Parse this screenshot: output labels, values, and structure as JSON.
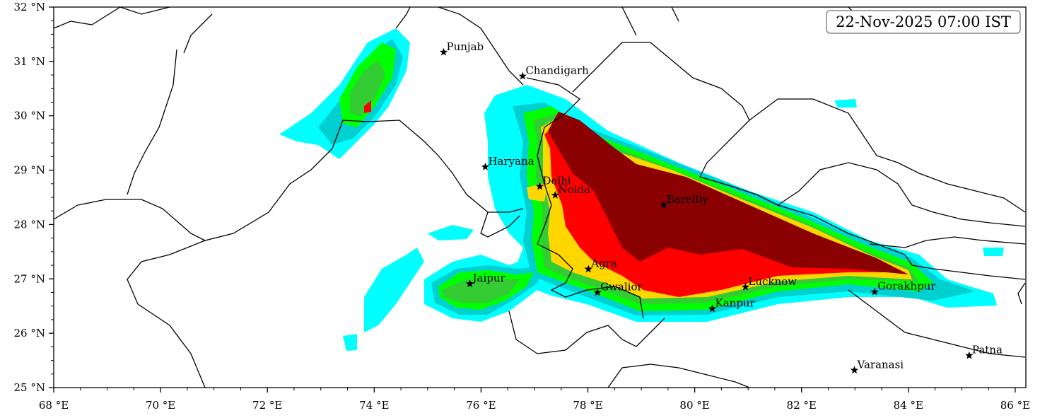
{
  "timestamp": "22-Nov-2025 07:00 IST",
  "axes": {
    "lon_range": [
      68,
      86.2
    ],
    "lat_range": [
      25,
      32
    ],
    "lon_ticks": [
      "68 °E",
      "70 °E",
      "72 °E",
      "74 °E",
      "76 °E",
      "78 °E",
      "80 °E",
      "82 °E",
      "84 °E",
      "86 °E"
    ],
    "lat_ticks": [
      "25 °N",
      "26 °N",
      "27 °N",
      "28 °N",
      "29 °N",
      "30 °N",
      "31 °N",
      "32 °N"
    ]
  },
  "cities": [
    {
      "name": "Punjab",
      "lon": 75.3,
      "lat": 31.17
    },
    {
      "name": "Chandigarh",
      "lon": 76.78,
      "lat": 30.73
    },
    {
      "name": "Haryana",
      "lon": 76.08,
      "lat": 29.06
    },
    {
      "name": "Delhi",
      "lon": 77.1,
      "lat": 28.7
    },
    {
      "name": "Noida",
      "lon": 77.39,
      "lat": 28.54
    },
    {
      "name": "Bareilly",
      "lon": 79.42,
      "lat": 28.36
    },
    {
      "name": "Jaipur",
      "lon": 75.79,
      "lat": 26.91
    },
    {
      "name": "Agra",
      "lon": 78.01,
      "lat": 27.18
    },
    {
      "name": "Gwalior",
      "lon": 78.18,
      "lat": 26.75
    },
    {
      "name": "Lucknow",
      "lon": 80.95,
      "lat": 26.85
    },
    {
      "name": "Kanpur",
      "lon": 80.33,
      "lat": 26.45
    },
    {
      "name": "Gorakhpur",
      "lon": 83.37,
      "lat": 26.76
    },
    {
      "name": "Varanasi",
      "lon": 82.99,
      "lat": 25.32
    },
    {
      "name": "Patna",
      "lon": 85.14,
      "lat": 25.59
    }
  ],
  "colors": {
    "level1": "#00ffff",
    "level2": "#00d0d0",
    "level3": "#00ff00",
    "level4": "#33cc33",
    "level5": "#ffd700",
    "level6": "#ff0000",
    "level7": "#8b0000"
  }
}
